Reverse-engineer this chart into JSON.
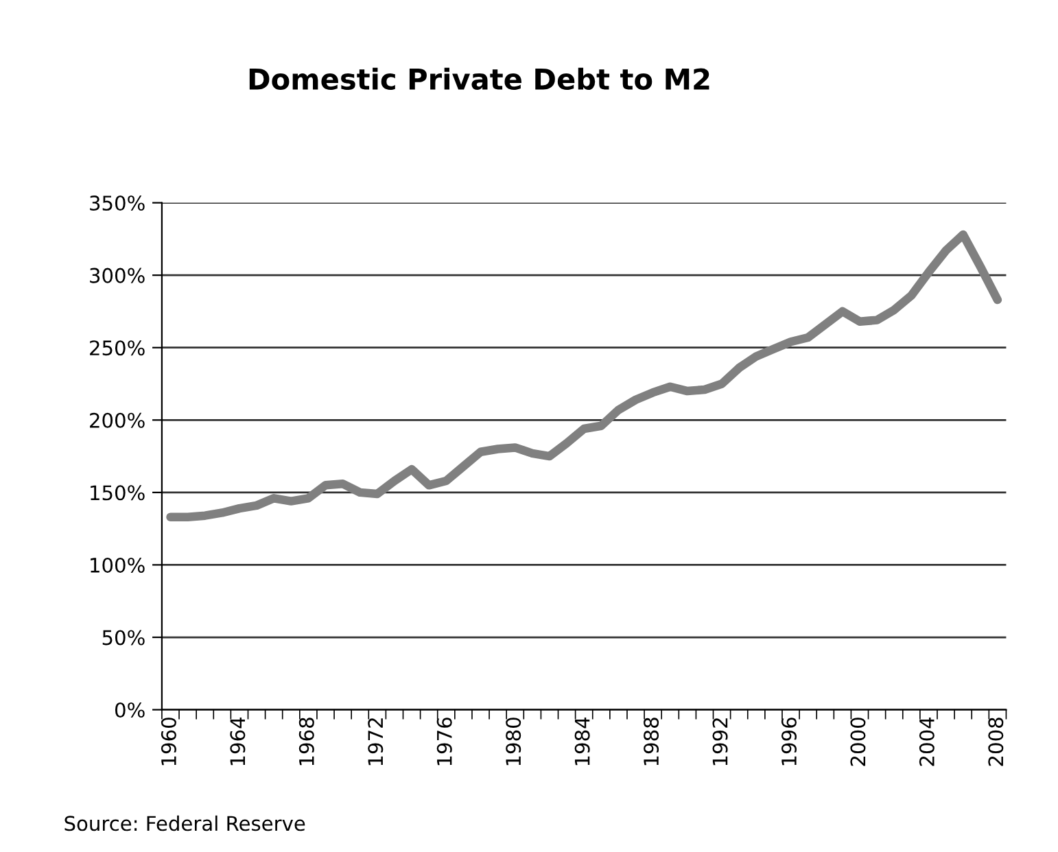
{
  "chart_data": {
    "type": "line",
    "title": "Domestic Private Debt to M2",
    "categories": [
      "1960",
      null,
      null,
      null,
      "1964",
      null,
      null,
      null,
      "1968",
      null,
      null,
      null,
      "1972",
      null,
      null,
      null,
      "1976",
      null,
      null,
      null,
      "1980",
      null,
      null,
      null,
      "1984",
      null,
      null,
      null,
      "1988",
      null,
      null,
      null,
      "1992",
      null,
      null,
      null,
      "1996",
      null,
      null,
      null,
      "2000",
      null,
      null,
      null,
      "2004",
      null,
      null,
      null,
      "2008"
    ],
    "series": [
      {
        "color": "#808080",
        "values": [
          133,
          133,
          134,
          136,
          139,
          141,
          146,
          144,
          146,
          155,
          156,
          150,
          149,
          158,
          166,
          155,
          158,
          168,
          178,
          180,
          181,
          177,
          175,
          184,
          194,
          196,
          207,
          214,
          219,
          223,
          220,
          221,
          225,
          236,
          244,
          249,
          254,
          257,
          266,
          275,
          268,
          269,
          276,
          286,
          302,
          317,
          328,
          306,
          283
        ]
      }
    ],
    "ylim": [
      0,
      350
    ],
    "yticks": [
      {
        "value": 0,
        "label": "0%"
      },
      {
        "value": 50,
        "label": "50%"
      },
      {
        "value": 100,
        "label": "100%"
      },
      {
        "value": 150,
        "label": "150%"
      },
      {
        "value": 200,
        "label": "200%"
      },
      {
        "value": 250,
        "label": "250%"
      },
      {
        "value": 300,
        "label": "300%"
      },
      {
        "value": 350,
        "label": "350%"
      }
    ],
    "grid": "y",
    "legend": false,
    "marker": "none",
    "line_style": "solid",
    "annotations": [
      "Source: Federal Reserve"
    ]
  }
}
